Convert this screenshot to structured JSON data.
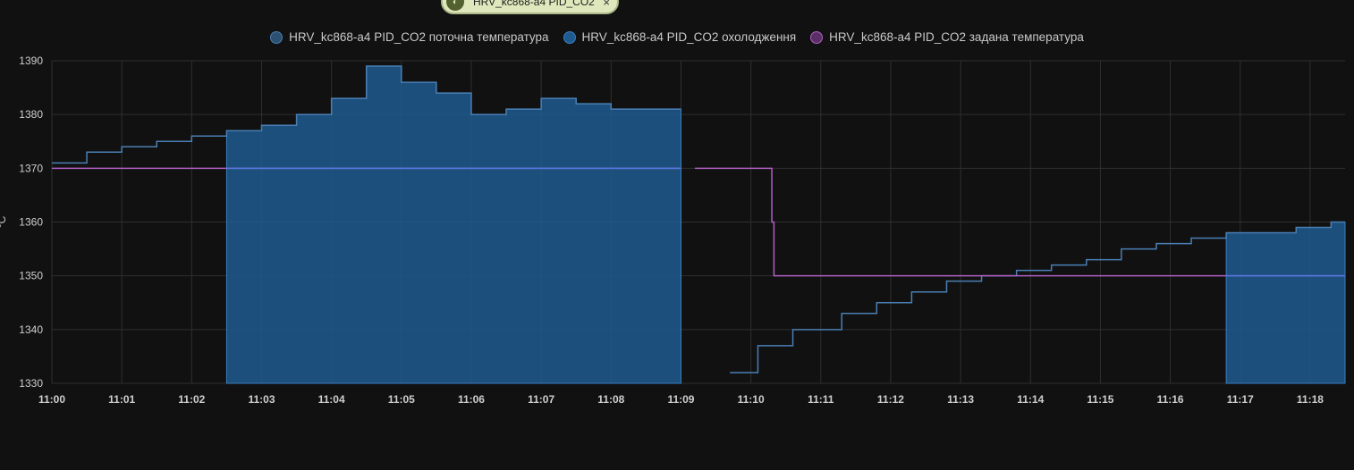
{
  "chip": {
    "label": "HRV_kc868-a4 PID_CO2",
    "close_label": "×",
    "icon": "thermostat-icon"
  },
  "colors": {
    "background": "#111111",
    "grid": "#2f2f2f",
    "current": "#4a7fb4",
    "current_fill": "#2d4f70",
    "cooling": "#1f5a8e",
    "setpoint": "#b05fc4",
    "setpoint_blue": "#4f78e0"
  },
  "chart_data": {
    "type": "line",
    "title": "",
    "xlabel": "",
    "ylabel": "°C",
    "ylim": [
      1330,
      1390
    ],
    "yticks": [
      1330,
      1340,
      1350,
      1360,
      1370,
      1380,
      1390
    ],
    "xlim": [
      "11:00",
      "11:18.5"
    ],
    "xticks": [
      "11:00",
      "11:01",
      "11:02",
      "11:03",
      "11:04",
      "11:05",
      "11:06",
      "11:07",
      "11:08",
      "11:09",
      "11:10",
      "11:11",
      "11:12",
      "11:13",
      "11:14",
      "11:15",
      "11:16",
      "11:17",
      "11:18"
    ],
    "grid": true,
    "legend_position": "top",
    "series": [
      {
        "name": "HRV_kc868-a4 PID_CO2 поточна температура",
        "kind": "step",
        "segments": [
          [
            [
              "11:00",
              1371
            ],
            [
              "11:00.5",
              1373
            ],
            [
              "11:01",
              1374
            ],
            [
              "11:01.5",
              1375
            ],
            [
              "11:02",
              1376
            ],
            [
              "11:02.5",
              1377
            ],
            [
              "11:03",
              1378
            ],
            [
              "11:03.5",
              1380
            ],
            [
              "11:04",
              1383
            ],
            [
              "11:04.5",
              1389
            ],
            [
              "11:05",
              1386
            ],
            [
              "11:05.5",
              1384
            ],
            [
              "11:06",
              1380
            ],
            [
              "11:06.5",
              1381
            ],
            [
              "11:07",
              1383
            ],
            [
              "11:07.5",
              1382
            ],
            [
              "11:08",
              1381
            ],
            [
              "11:09",
              1381
            ]
          ],
          [
            [
              "11:09.7",
              1332
            ],
            [
              "11:10.1",
              1337
            ],
            [
              "11:10.6",
              1340
            ],
            [
              "11:11.3",
              1343
            ],
            [
              "11:11.8",
              1345
            ],
            [
              "11:12.3",
              1347
            ],
            [
              "11:12.8",
              1349
            ],
            [
              "11:13.3",
              1350
            ],
            [
              "11:13.8",
              1351
            ],
            [
              "11:14.3",
              1352
            ],
            [
              "11:14.8",
              1353
            ],
            [
              "11:15.3",
              1355
            ],
            [
              "11:15.8",
              1356
            ],
            [
              "11:16.3",
              1357
            ],
            [
              "11:16.8",
              1358
            ],
            [
              "11:17.8",
              1359
            ],
            [
              "11:18.3",
              1360
            ],
            [
              "11:18.5",
              1360
            ]
          ]
        ]
      },
      {
        "name": "HRV_kc868-a4 PID_CO2 охолодження",
        "kind": "area",
        "ranges": [
          [
            "11:02.5",
            "11:09"
          ],
          [
            "11:16.8",
            "11:18.5"
          ]
        ]
      },
      {
        "name": "HRV_kc868-a4 PID_CO2 задана температура",
        "kind": "step",
        "segments": [
          [
            [
              "11:00",
              1370
            ],
            [
              "11:09",
              1370
            ]
          ],
          [
            [
              "11:09.2",
              1370
            ],
            [
              "11:10.3",
              1360
            ],
            [
              "11:10.33",
              1350
            ],
            [
              "11:18.5",
              1350
            ]
          ]
        ]
      }
    ]
  }
}
